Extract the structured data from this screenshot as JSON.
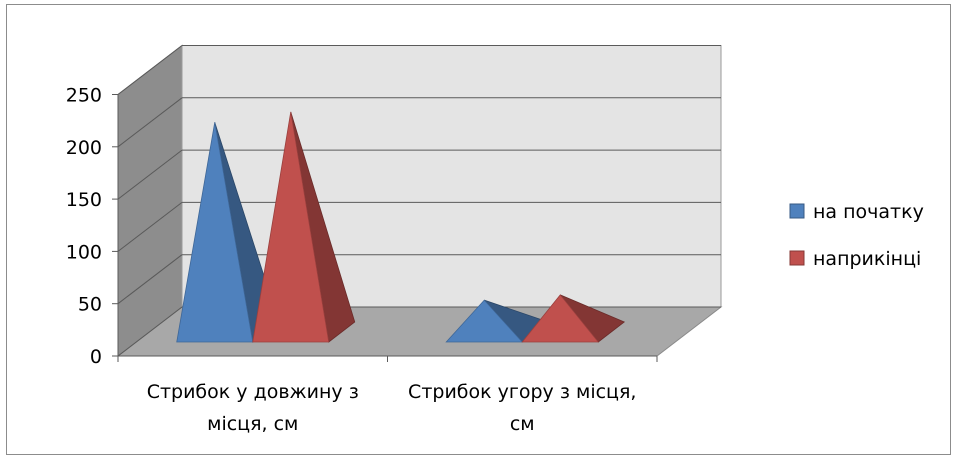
{
  "chart_data": {
    "type": "bar",
    "style": "3d-pyramid",
    "categories": [
      [
        "Стрибок у довжину з",
        "місця, см"
      ],
      [
        "Стрибок угору з місця,",
        "см"
      ]
    ],
    "series": [
      {
        "name": "на початку",
        "values": [
          210,
          40
        ],
        "color": "#4f81bd"
      },
      {
        "name": "наприкінці",
        "values": [
          220,
          45
        ],
        "color": "#c0504d"
      }
    ],
    "ylim": [
      0,
      250
    ],
    "yticks": [
      0,
      50,
      100,
      150,
      200,
      250
    ],
    "grid": true,
    "legend_position": "right"
  }
}
